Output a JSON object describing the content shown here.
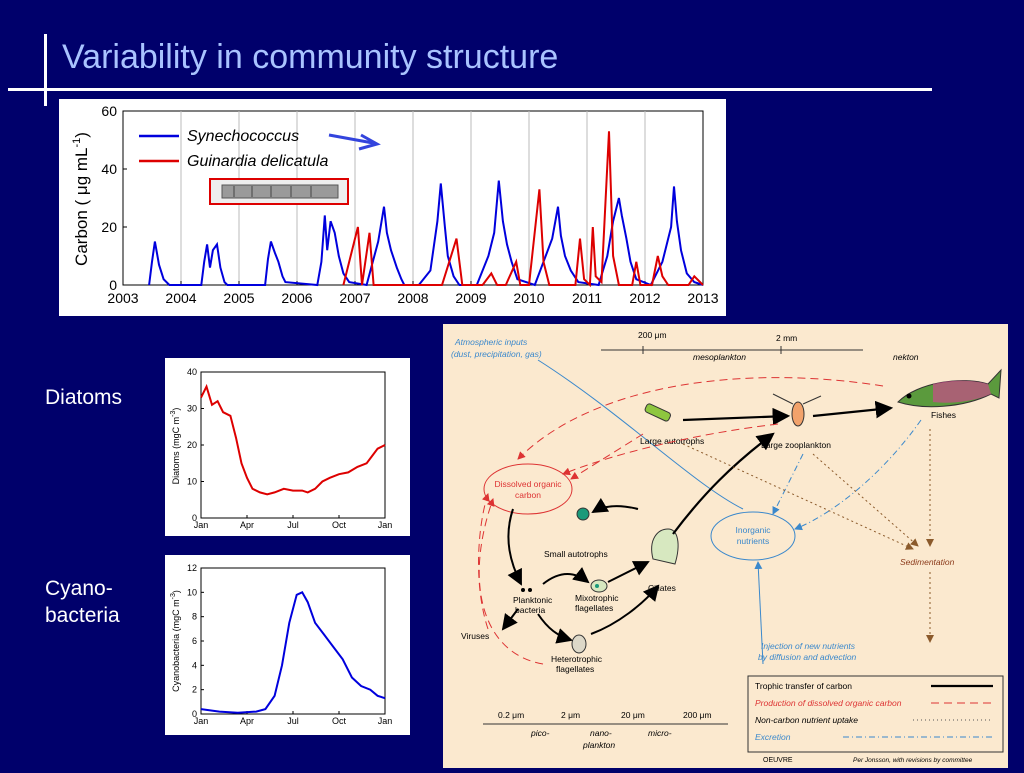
{
  "slide": {
    "title": "Variability in community structure",
    "diatoms_label": "Diatoms",
    "cyano_label_1": "Cyano-",
    "cyano_label_2": "bacteria"
  },
  "colors": {
    "background": "#00006b",
    "title": "#a9c3ff",
    "synecho": "#0000dd",
    "guinardia": "#dd0000"
  },
  "chart_data": [
    {
      "type": "line",
      "ylabel": "Carbon ( μg mL-1)",
      "ylim": [
        0,
        60
      ],
      "yticks": [
        "0",
        "20",
        "40",
        "60"
      ],
      "xticks": [
        "2003",
        "2004",
        "2005",
        "2006",
        "2007",
        "2008",
        "2009",
        "2010",
        "2011",
        "2012",
        "2013"
      ],
      "xlim": [
        2003,
        2013
      ],
      "grid": "vertical",
      "legend": "top-left",
      "series": [
        {
          "name": "Synechococcus",
          "color": "#0000dd",
          "points": [
            [
              2003.45,
              0
            ],
            [
              2003.5,
              8
            ],
            [
              2003.55,
              15
            ],
            [
              2003.62,
              7
            ],
            [
              2003.7,
              2
            ],
            [
              2003.8,
              0
            ],
            [
              2004.35,
              0
            ],
            [
              2004.4,
              8
            ],
            [
              2004.45,
              14
            ],
            [
              2004.5,
              6
            ],
            [
              2004.55,
              12
            ],
            [
              2004.62,
              14
            ],
            [
              2004.68,
              6
            ],
            [
              2004.75,
              1
            ],
            [
              2004.8,
              0
            ],
            [
              2005.45,
              0
            ],
            [
              2005.5,
              9
            ],
            [
              2005.55,
              15
            ],
            [
              2005.62,
              11
            ],
            [
              2005.68,
              8
            ],
            [
              2005.75,
              3
            ],
            [
              2005.8,
              1
            ],
            [
              2006.35,
              0
            ],
            [
              2006.42,
              8
            ],
            [
              2006.48,
              24
            ],
            [
              2006.52,
              12
            ],
            [
              2006.58,
              22
            ],
            [
              2006.65,
              18
            ],
            [
              2006.72,
              10
            ],
            [
              2006.8,
              4
            ],
            [
              2006.9,
              1
            ],
            [
              2007.2,
              0
            ],
            [
              2007.4,
              15
            ],
            [
              2007.5,
              27
            ],
            [
              2007.55,
              18
            ],
            [
              2007.62,
              12
            ],
            [
              2007.72,
              6
            ],
            [
              2007.8,
              2
            ],
            [
              2007.85,
              0
            ],
            [
              2008.1,
              0
            ],
            [
              2008.3,
              5
            ],
            [
              2008.42,
              22
            ],
            [
              2008.48,
              35
            ],
            [
              2008.55,
              20
            ],
            [
              2008.6,
              10
            ],
            [
              2008.7,
              3
            ],
            [
              2008.8,
              0
            ],
            [
              2009.1,
              0
            ],
            [
              2009.3,
              10
            ],
            [
              2009.4,
              18
            ],
            [
              2009.48,
              36
            ],
            [
              2009.55,
              22
            ],
            [
              2009.62,
              14
            ],
            [
              2009.7,
              8
            ],
            [
              2009.8,
              2
            ],
            [
              2010.1,
              0
            ],
            [
              2010.25,
              8
            ],
            [
              2010.4,
              16
            ],
            [
              2010.5,
              27
            ],
            [
              2010.55,
              17
            ],
            [
              2010.62,
              10
            ],
            [
              2010.72,
              5
            ],
            [
              2010.85,
              1
            ],
            [
              2011.2,
              0
            ],
            [
              2011.35,
              10
            ],
            [
              2011.45,
              22
            ],
            [
              2011.55,
              30
            ],
            [
              2011.6,
              24
            ],
            [
              2011.68,
              16
            ],
            [
              2011.75,
              8
            ],
            [
              2011.85,
              2
            ],
            [
              2012.1,
              0
            ],
            [
              2012.3,
              8
            ],
            [
              2012.45,
              20
            ],
            [
              2012.5,
              34
            ],
            [
              2012.55,
              22
            ],
            [
              2012.62,
              12
            ],
            [
              2012.72,
              4
            ],
            [
              2012.85,
              1
            ],
            [
              2013,
              0
            ]
          ]
        },
        {
          "name": "Guinardia delicatula",
          "color": "#dd0000",
          "points": [
            [
              2006.8,
              0
            ],
            [
              2007.05,
              20
            ],
            [
              2007.12,
              0
            ],
            [
              2007.25,
              18
            ],
            [
              2007.32,
              0
            ],
            [
              2007.5,
              0
            ],
            [
              2008.5,
              0
            ],
            [
              2008.75,
              16
            ],
            [
              2008.85,
              0
            ],
            [
              2009.2,
              0
            ],
            [
              2009.35,
              4
            ],
            [
              2009.45,
              0
            ],
            [
              2009.6,
              0
            ],
            [
              2009.78,
              8
            ],
            [
              2009.85,
              0
            ],
            [
              2010.0,
              0
            ],
            [
              2010.18,
              33
            ],
            [
              2010.25,
              8
            ],
            [
              2010.35,
              0
            ],
            [
              2010.8,
              0
            ],
            [
              2010.88,
              16
            ],
            [
              2010.95,
              2
            ],
            [
              2011.05,
              0
            ],
            [
              2011.1,
              20
            ],
            [
              2011.15,
              3
            ],
            [
              2011.25,
              1
            ],
            [
              2011.38,
              53
            ],
            [
              2011.45,
              10
            ],
            [
              2011.55,
              0
            ],
            [
              2011.78,
              0
            ],
            [
              2011.85,
              8
            ],
            [
              2011.92,
              0
            ],
            [
              2012.12,
              0
            ],
            [
              2012.22,
              10
            ],
            [
              2012.3,
              3
            ],
            [
              2012.4,
              0
            ],
            [
              2012.75,
              0
            ],
            [
              2012.85,
              3
            ],
            [
              2013,
              0
            ]
          ]
        }
      ]
    },
    {
      "type": "line",
      "ylabel": "Diatoms (mgC m-3)",
      "ylim": [
        0,
        40
      ],
      "yticks": [
        "0",
        "10",
        "20",
        "30",
        "40"
      ],
      "xticks": [
        "Jan",
        "Apr",
        "Jul",
        "Oct",
        "Jan"
      ],
      "series": [
        {
          "name": "",
          "color": "#dd0000",
          "values": [
            [
              0,
              33
            ],
            [
              0.03,
              36
            ],
            [
              0.06,
              31
            ],
            [
              0.09,
              32
            ],
            [
              0.12,
              29
            ],
            [
              0.16,
              28
            ],
            [
              0.19,
              22
            ],
            [
              0.22,
              15
            ],
            [
              0.25,
              11
            ],
            [
              0.28,
              8
            ],
            [
              0.32,
              7
            ],
            [
              0.36,
              6.5
            ],
            [
              0.4,
              7
            ],
            [
              0.45,
              8
            ],
            [
              0.5,
              7.5
            ],
            [
              0.55,
              7.5
            ],
            [
              0.58,
              7
            ],
            [
              0.62,
              8
            ],
            [
              0.66,
              10
            ],
            [
              0.7,
              11
            ],
            [
              0.75,
              12
            ],
            [
              0.8,
              12.5
            ],
            [
              0.85,
              14
            ],
            [
              0.9,
              15
            ],
            [
              0.93,
              17
            ],
            [
              0.96,
              19
            ],
            [
              1,
              20
            ]
          ]
        }
      ]
    },
    {
      "type": "line",
      "ylabel": "Cyanobacteria (mgC m-3)",
      "ylim": [
        0,
        12
      ],
      "yticks": [
        "0",
        "2",
        "4",
        "6",
        "8",
        "10",
        "12"
      ],
      "xticks": [
        "Jan",
        "Apr",
        "Jul",
        "Oct",
        "Jan"
      ],
      "series": [
        {
          "name": "",
          "color": "#0000dd",
          "values": [
            [
              0,
              0.4
            ],
            [
              0.1,
              0.2
            ],
            [
              0.2,
              0.1
            ],
            [
              0.3,
              0.2
            ],
            [
              0.35,
              0.4
            ],
            [
              0.4,
              1.5
            ],
            [
              0.44,
              4
            ],
            [
              0.48,
              7.5
            ],
            [
              0.52,
              9.8
            ],
            [
              0.55,
              10
            ],
            [
              0.58,
              9.2
            ],
            [
              0.62,
              7.5
            ],
            [
              0.67,
              6.5
            ],
            [
              0.72,
              5.5
            ],
            [
              0.77,
              4.5
            ],
            [
              0.82,
              3
            ],
            [
              0.87,
              2.3
            ],
            [
              0.92,
              2
            ],
            [
              0.96,
              1.5
            ],
            [
              1,
              1.3
            ]
          ]
        }
      ]
    }
  ],
  "legend": {
    "synecho": "Synechococcus",
    "guinardia": "Guinardia delicatula"
  },
  "diagram": {
    "atmos1": "Atmospheric inputs",
    "atmos2": "(dust, precipitation, gas)",
    "size200": "200 μm",
    "size2mm": "2 mm",
    "mesoplankton": "mesoplankton",
    "nekton": "nekton",
    "large_auto": "Large autotrophs",
    "large_zoo": "Large zooplankton",
    "fishes": "Fishes",
    "doc1": "Dissolved organic",
    "doc2": "carbon",
    "inorg1": "Inorganic",
    "inorg2": "nutrients",
    "small_auto": "Small autotrophs",
    "ciliates": "Ciliates",
    "mixo1": "Mixotrophic",
    "mixo2": "flagellates",
    "plank1": "Planktonic",
    "plank2": "bacteria",
    "viruses": "Viruses",
    "hetero1": "Heterotrophic",
    "hetero2": "flagellates",
    "sedimentation": "Sedimentation",
    "inject1": "Injection of new nutrients",
    "inject2": "by diffusion and advection",
    "leg1": "Trophic transfer of carbon",
    "leg2": "Production of dissolved organic carbon",
    "leg3": "Non-carbon nutrient uptake",
    "leg4": "Excretion",
    "s02": "0.2 μm",
    "s2": "2 μm",
    "s20": "20 μm",
    "s200": "200 μm",
    "pico": "pico-",
    "nano1": "nano-",
    "nano2": "plankton",
    "micro": "micro-",
    "credit1": "OEUVRE",
    "credit2": "Per Jonsson, with revisions by committee"
  }
}
